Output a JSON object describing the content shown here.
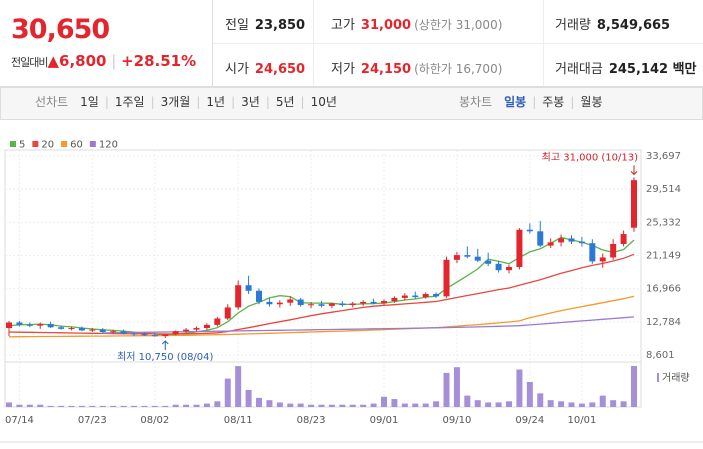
{
  "header": {
    "price": "30,650",
    "change_label": "전일대비",
    "change": "6,800",
    "change_rate": "+28.51%",
    "stats": [
      {
        "label": "전일",
        "value": "23,850"
      },
      {
        "label": "고가",
        "value": "31,000",
        "note": "(상한가 31,000)"
      },
      {
        "label": "거래량",
        "value": "8,549,665"
      },
      {
        "label": "시가",
        "value": "24,650"
      },
      {
        "label": "저가",
        "value": "24,150",
        "note": "(하한가 16,700)"
      },
      {
        "label": "거래대금",
        "value": "245,142 백만"
      }
    ]
  },
  "tabs": {
    "line": {
      "label": "선차트",
      "items": [
        "1일",
        "1주일",
        "3개월",
        "1년",
        "3년",
        "5년",
        "10년"
      ]
    },
    "candle": {
      "label": "봉차트",
      "items": [
        "일봉",
        "주봉",
        "월봉"
      ],
      "active": 0
    }
  },
  "chart_data": {
    "type": "candlestick",
    "categories": [
      null,
      "07/14",
      null,
      null,
      null,
      null,
      null,
      null,
      "07/23",
      null,
      null,
      null,
      null,
      null,
      "08/02",
      null,
      null,
      null,
      null,
      null,
      null,
      null,
      "08/11",
      null,
      null,
      null,
      null,
      null,
      null,
      "08/23",
      null,
      null,
      null,
      null,
      null,
      null,
      "09/01",
      null,
      null,
      null,
      null,
      null,
      null,
      "09/10",
      null,
      null,
      null,
      null,
      null,
      null,
      "09/24",
      null,
      null,
      null,
      null,
      "10/01",
      null,
      null,
      null,
      null,
      null
    ],
    "open": [
      12000,
      12700,
      12400,
      12300,
      12500,
      12100,
      11900,
      12000,
      11700,
      11800,
      11500,
      11600,
      11300,
      11200,
      11100,
      11000,
      11200,
      11600,
      11800,
      12000,
      12400,
      13200,
      14600,
      17400,
      16700,
      15300,
      15000,
      15200,
      15600,
      14900,
      15000,
      14800,
      15100,
      14900,
      15100,
      15300,
      15100,
      15400,
      15800,
      16100,
      15900,
      16300,
      16000,
      20600,
      21200,
      21000,
      20500,
      20100,
      19300,
      19700,
      24400,
      24200,
      22400,
      22800,
      23300,
      22900,
      22700,
      20400,
      20900,
      22600,
      24650
    ],
    "high": [
      12900,
      12900,
      12700,
      12700,
      12800,
      12300,
      12200,
      12200,
      12000,
      12000,
      11800,
      11800,
      11500,
      11500,
      11400,
      11300,
      11700,
      12000,
      12200,
      12600,
      13400,
      15000,
      18000,
      18600,
      17000,
      15800,
      15500,
      16000,
      15800,
      15300,
      15400,
      15200,
      15400,
      15300,
      15500,
      15700,
      15600,
      16000,
      16400,
      16600,
      16500,
      16500,
      21000,
      21600,
      22300,
      22000,
      21500,
      20500,
      20000,
      24600,
      25200,
      25500,
      23300,
      23800,
      23700,
      23500,
      23200,
      21400,
      23200,
      24300,
      31000
    ],
    "low": [
      11000,
      12200,
      12100,
      11900,
      12000,
      11800,
      11700,
      11600,
      11500,
      11400,
      11300,
      11200,
      11000,
      11000,
      10900,
      10750,
      11100,
      11400,
      11600,
      11800,
      12200,
      13000,
      14300,
      16300,
      15000,
      14700,
      14600,
      14800,
      14700,
      14500,
      14600,
      14500,
      14700,
      14600,
      14800,
      15000,
      14900,
      15200,
      15500,
      15700,
      15700,
      15800,
      15800,
      20200,
      20800,
      20300,
      19800,
      19000,
      18900,
      19400,
      23900,
      22200,
      22100,
      22300,
      22600,
      22300,
      20100,
      19600,
      20600,
      22300,
      24150
    ],
    "close": [
      12700,
      12400,
      12300,
      12500,
      12100,
      11900,
      12000,
      11700,
      11800,
      11500,
      11600,
      11300,
      11200,
      11100,
      11000,
      11200,
      11600,
      11800,
      12000,
      12400,
      13200,
      14600,
      17400,
      16700,
      15300,
      15000,
      15200,
      15600,
      14900,
      15000,
      14800,
      15100,
      14900,
      15100,
      15300,
      15100,
      15400,
      15800,
      16100,
      15900,
      16300,
      16000,
      20600,
      21200,
      21000,
      20500,
      20100,
      19300,
      19700,
      24400,
      24200,
      22400,
      22800,
      23300,
      22900,
      22700,
      20400,
      20900,
      22600,
      23850,
      30650
    ],
    "volume": [
      948000,
      474000,
      474000,
      474000,
      237000,
      237000,
      237000,
      237000,
      237000,
      237000,
      237000,
      237000,
      237000,
      237000,
      237000,
      237000,
      474000,
      474000,
      474000,
      711000,
      1185000,
      5925000,
      8532000,
      3555000,
      1896000,
      1422000,
      948000,
      711000,
      711000,
      474000,
      474000,
      474000,
      474000,
      474000,
      474000,
      711000,
      2133000,
      1659000,
      711000,
      711000,
      711000,
      1185000,
      7110000,
      8295000,
      2370000,
      1422000,
      948000,
      948000,
      1185000,
      7821000,
      5214000,
      2844000,
      1422000,
      1185000,
      948000,
      711000,
      948000,
      2370000,
      1422000,
      1185000,
      8549665
    ],
    "up_color": "#e3262d",
    "down_color": "#2c78d6",
    "volume_color": "#a48fd8",
    "volume_label": "거래량",
    "series": [
      {
        "name": "5",
        "color": "#58b548",
        "values": [
          12300,
          12400,
          12450,
          12500,
          12400,
          12250,
          12150,
          12000,
          11880,
          11780,
          11700,
          11620,
          11480,
          11380,
          11240,
          11160,
          11220,
          11340,
          11520,
          11720,
          12040,
          12800,
          13900,
          14760,
          15240,
          15800,
          16080,
          15960,
          15200,
          15140,
          15140,
          15120,
          15000,
          14980,
          15040,
          15080,
          15160,
          15340,
          15540,
          15660,
          15900,
          16020,
          16980,
          17800,
          18600,
          19460,
          20680,
          20420,
          20120,
          20880,
          21600,
          22000,
          22700,
          23420,
          23120,
          22820,
          22420,
          21840,
          21540,
          21900,
          23110
        ]
      },
      {
        "name": "20",
        "color": "#e5483f",
        "values": [
          11500,
          11480,
          11460,
          11440,
          11420,
          11400,
          11380,
          11360,
          11340,
          11320,
          11300,
          11290,
          11280,
          11270,
          11260,
          11250,
          11260,
          11280,
          11300,
          11340,
          11400,
          11560,
          11820,
          12040,
          12300,
          12560,
          12800,
          13040,
          13300,
          13560,
          13800,
          14000,
          14200,
          14400,
          14600,
          14750,
          14850,
          14950,
          15050,
          15150,
          15250,
          15350,
          15600,
          15850,
          16100,
          16350,
          16600,
          16850,
          17050,
          17400,
          17750,
          18100,
          18500,
          18900,
          19250,
          19600,
          19900,
          20150,
          20450,
          20800,
          21300
        ]
      },
      {
        "name": "60",
        "color": "#f39a2b",
        "values": [
          10900,
          10910,
          10920,
          10930,
          10940,
          10950,
          10960,
          10970,
          10980,
          10990,
          11000,
          11010,
          11020,
          11030,
          11040,
          11050,
          11070,
          11090,
          11110,
          11130,
          11160,
          11190,
          11220,
          11260,
          11300,
          11340,
          11380,
          11420,
          11460,
          11500,
          11540,
          11580,
          11620,
          11660,
          11700,
          11750,
          11800,
          11850,
          11900,
          11950,
          12000,
          12060,
          12140,
          12240,
          12340,
          12440,
          12540,
          12650,
          12760,
          12900,
          13300,
          13600,
          13900,
          14200,
          14450,
          14700,
          14950,
          15200,
          15450,
          15700,
          16000
        ]
      },
      {
        "name": "120",
        "color": "#9a79cf",
        "values": [
          null,
          null,
          null,
          null,
          null,
          null,
          null,
          null,
          null,
          11380,
          11400,
          11420,
          11440,
          11460,
          11480,
          11500,
          11520,
          11540,
          11560,
          11580,
          11600,
          11620,
          11640,
          11660,
          11680,
          11700,
          11720,
          11740,
          11760,
          11780,
          11800,
          11820,
          11840,
          11860,
          11880,
          11900,
          11920,
          11940,
          11960,
          11980,
          12000,
          12030,
          12060,
          12090,
          12120,
          12150,
          12180,
          12220,
          12260,
          12300,
          12400,
          12500,
          12600,
          12700,
          12800,
          12900,
          13000,
          13100,
          13200,
          13300,
          13400
        ]
      }
    ],
    "ylim": [
      8601,
      33697
    ],
    "yticks": [
      {
        "value": 8601,
        "label": "8,601"
      },
      {
        "value": 12784,
        "label": "12,784"
      },
      {
        "value": 16966,
        "label": "16,966"
      },
      {
        "value": 21149,
        "label": "21,149"
      },
      {
        "value": 25332,
        "label": "25,332"
      },
      {
        "value": 29514,
        "label": "29,514"
      },
      {
        "value": 33697,
        "label": "33,697"
      }
    ],
    "grid": true,
    "annotations": {
      "high": {
        "text": "최고 31,000 (10/13)",
        "index": 60
      },
      "low": {
        "text": "최저 10,750 (08/04)",
        "index": 15
      }
    }
  }
}
